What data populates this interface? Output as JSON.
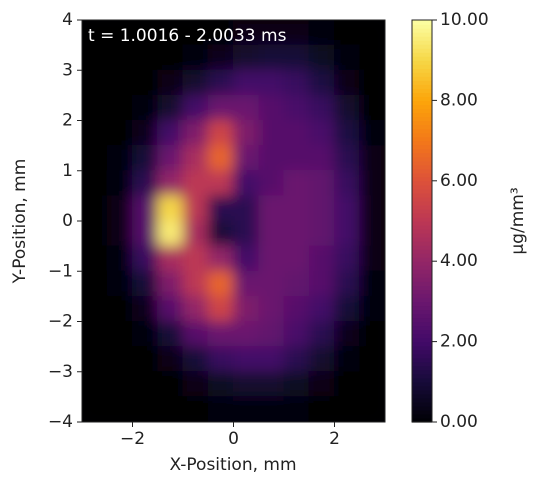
{
  "chart_data": {
    "type": "heatmap",
    "annotation": "t = 1.0016 - 2.0033 ms",
    "x_label": "X-Position, mm",
    "y_label": "Y-Position, mm",
    "colorbar_label": "μg/mm³",
    "colormap": "inferno",
    "x": [
      -2.75,
      -2.25,
      -1.75,
      -1.25,
      -0.75,
      -0.25,
      0.25,
      0.75,
      1.25,
      1.75,
      2.25,
      2.75
    ],
    "y": [
      3.75,
      3.25,
      2.75,
      2.25,
      1.75,
      1.25,
      0.75,
      0.25,
      -0.25,
      -0.75,
      -1.25,
      -1.75,
      -2.25,
      -2.75,
      -3.25,
      -3.75
    ],
    "z": [
      [
        0,
        0,
        0,
        0,
        0,
        0,
        0.3,
        0.4,
        0.3,
        0.2,
        0,
        0
      ],
      [
        0,
        0,
        0,
        0,
        0.2,
        0.5,
        0.8,
        1,
        1,
        0.6,
        0.2,
        0
      ],
      [
        0,
        0,
        0,
        0.3,
        0.8,
        1.5,
        2,
        2,
        1.8,
        1.2,
        0.4,
        0
      ],
      [
        0,
        0,
        0.2,
        0.8,
        2,
        3,
        3,
        2.5,
        2.2,
        1.8,
        0.8,
        0
      ],
      [
        0,
        0,
        0.5,
        2,
        3.5,
        5.5,
        3.5,
        2.5,
        2.5,
        2.2,
        1.2,
        0.2
      ],
      [
        0,
        0.1,
        1,
        3,
        4.5,
        6.5,
        3,
        2.5,
        2.5,
        2.5,
        1.5,
        0.3
      ],
      [
        0,
        0.2,
        1.5,
        4,
        5,
        5,
        2,
        2.5,
        3,
        2.8,
        1.8,
        0.3
      ],
      [
        0,
        0.3,
        2.5,
        9,
        5,
        1.5,
        1.5,
        3,
        3,
        2.8,
        2,
        0.4
      ],
      [
        0,
        0.3,
        2.5,
        9.5,
        4.5,
        1,
        1.5,
        3,
        3,
        2.8,
        2,
        0.4
      ],
      [
        0,
        0.2,
        1.8,
        4.5,
        5,
        4,
        2,
        3,
        3,
        2.5,
        1.8,
        0.3
      ],
      [
        0,
        0.1,
        1,
        3.5,
        5,
        6.5,
        3,
        3,
        2.8,
        2.5,
        1.5,
        0.2
      ],
      [
        0,
        0,
        0.5,
        2.5,
        4,
        5.5,
        3.5,
        3,
        2.5,
        2,
        1,
        0.1
      ],
      [
        0,
        0,
        0.2,
        1,
        2.5,
        3,
        3,
        2.8,
        2.2,
        1.5,
        0.5,
        0
      ],
      [
        0,
        0,
        0,
        0.3,
        1,
        1.8,
        2,
        2,
        1.5,
        0.8,
        0.2,
        0
      ],
      [
        0,
        0,
        0,
        0,
        0.3,
        0.6,
        0.8,
        0.8,
        0.6,
        0.3,
        0,
        0
      ],
      [
        0,
        0,
        0,
        0,
        0,
        0.1,
        0.2,
        0.2,
        0.1,
        0,
        0,
        0
      ]
    ],
    "xlim": [
      -3,
      3
    ],
    "xticks": [
      {
        "value": -2,
        "label": "−2"
      },
      0,
      2
    ],
    "ylim": [
      -4,
      4
    ],
    "yticks": [
      {
        "value": -4,
        "label": "−4"
      },
      {
        "value": -3,
        "label": "−3"
      },
      {
        "value": -2,
        "label": "−2"
      },
      {
        "value": -1,
        "label": "−1"
      },
      0,
      1,
      2,
      3,
      4
    ],
    "zlim": [
      0,
      10
    ],
    "zticks": [
      {
        "value": 0,
        "label": "0.00"
      },
      {
        "value": 2,
        "label": "2.00"
      },
      {
        "value": 4,
        "label": "4.00"
      },
      {
        "value": 6,
        "label": "6.00"
      },
      {
        "value": 8,
        "label": "8.00"
      },
      {
        "value": 10,
        "label": "10.00"
      }
    ]
  }
}
